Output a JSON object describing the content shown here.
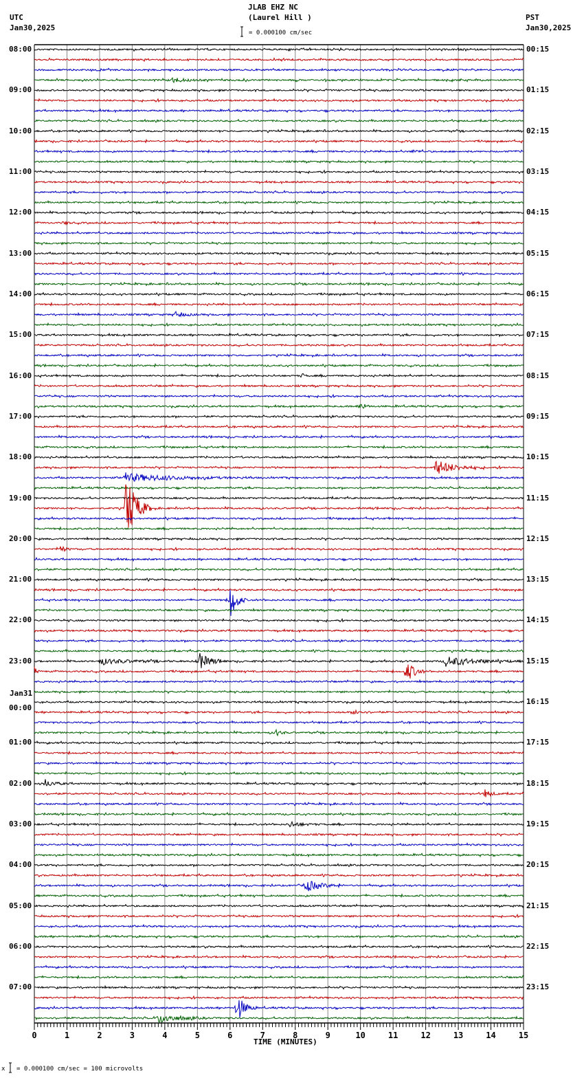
{
  "header": {
    "station": "JLAB EHZ NC",
    "location": "(Laurel Hill )",
    "left_tz": "UTC",
    "left_date": "Jan30,2025",
    "right_tz": "PST",
    "right_date": "Jan30,2025",
    "scale_text": "= 0.000100 cm/sec"
  },
  "footer": {
    "scale_text": "= 0.000100 cm/sec =     100 microvolts",
    "marker": "x"
  },
  "day_change_label": "Jan31",
  "chart_data": {
    "type": "line",
    "title": "JLAB EHZ NC (Laurel Hill ) helicorder",
    "xlabel": "TIME (MINUTES)",
    "ylabel": "",
    "x_ticks": [
      "0",
      "1",
      "2",
      "3",
      "4",
      "5",
      "6",
      "7",
      "8",
      "9",
      "10",
      "11",
      "12",
      "13",
      "14",
      "15"
    ],
    "xlim": [
      0,
      15
    ],
    "minor_ticks_per_minute": 10,
    "grid": true,
    "trace_colors": [
      "#000000",
      "#c00000",
      "#0000c0",
      "#006000"
    ],
    "traces_per_hour": 4,
    "trace_count": 96,
    "left_labels": [
      "08:00",
      "09:00",
      "10:00",
      "11:00",
      "12:00",
      "13:00",
      "14:00",
      "15:00",
      "16:00",
      "17:00",
      "18:00",
      "19:00",
      "20:00",
      "21:00",
      "22:00",
      "23:00",
      "00:00",
      "01:00",
      "02:00",
      "03:00",
      "04:00",
      "05:00",
      "06:00",
      "07:00"
    ],
    "right_labels": [
      "00:15",
      "01:15",
      "02:15",
      "03:15",
      "04:15",
      "05:15",
      "06:15",
      "07:15",
      "08:15",
      "09:15",
      "10:15",
      "11:15",
      "12:15",
      "13:15",
      "14:15",
      "15:15",
      "16:15",
      "17:15",
      "18:15",
      "19:15",
      "20:15",
      "21:15",
      "22:15",
      "23:15"
    ],
    "events": [
      {
        "trace": 3,
        "minute": 4.2,
        "amp": 3,
        "dur": 1.2
      },
      {
        "trace": 10,
        "minute": 11.6,
        "amp": 2,
        "dur": 0.6
      },
      {
        "trace": 17,
        "minute": 0.9,
        "amp": 3,
        "dur": 0.3
      },
      {
        "trace": 26,
        "minute": 4.3,
        "amp": 4,
        "dur": 0.8
      },
      {
        "trace": 32,
        "minute": 8.2,
        "amp": 4,
        "dur": 0.2
      },
      {
        "trace": 35,
        "minute": 10.0,
        "amp": 6,
        "dur": 0.4
      },
      {
        "trace": 41,
        "minute": 12.3,
        "amp": 11,
        "dur": 1.5
      },
      {
        "trace": 42,
        "minute": 2.7,
        "amp": 6,
        "dur": 4.0
      },
      {
        "trace": 45,
        "minute": 2.8,
        "amp": 55,
        "dur": 0.8
      },
      {
        "trace": 49,
        "minute": 0.8,
        "amp": 5,
        "dur": 0.4
      },
      {
        "trace": 54,
        "minute": 6.0,
        "amp": 30,
        "dur": 0.5
      },
      {
        "trace": 60,
        "minute": 5.0,
        "amp": 14,
        "dur": 0.9
      },
      {
        "trace": 60,
        "minute": 12.6,
        "amp": 7,
        "dur": 2.4
      },
      {
        "trace": 60,
        "minute": 2.0,
        "amp": 4,
        "dur": 2.5
      },
      {
        "trace": 61,
        "minute": 11.4,
        "amp": 18,
        "dur": 0.6
      },
      {
        "trace": 61,
        "minute": 0.0,
        "amp": 6,
        "dur": 0.2
      },
      {
        "trace": 65,
        "minute": 9.8,
        "amp": 5,
        "dur": 0.5
      },
      {
        "trace": 67,
        "minute": 7.4,
        "amp": 5,
        "dur": 0.4
      },
      {
        "trace": 72,
        "minute": 0.3,
        "amp": 5,
        "dur": 0.8
      },
      {
        "trace": 73,
        "minute": 13.8,
        "amp": 7,
        "dur": 0.5
      },
      {
        "trace": 76,
        "minute": 7.8,
        "amp": 4,
        "dur": 1.0
      },
      {
        "trace": 82,
        "minute": 8.3,
        "amp": 9,
        "dur": 1.2
      },
      {
        "trace": 94,
        "minute": 6.2,
        "amp": 22,
        "dur": 0.6
      },
      {
        "trace": 95,
        "minute": 3.8,
        "amp": 7,
        "dur": 1.6
      }
    ]
  }
}
